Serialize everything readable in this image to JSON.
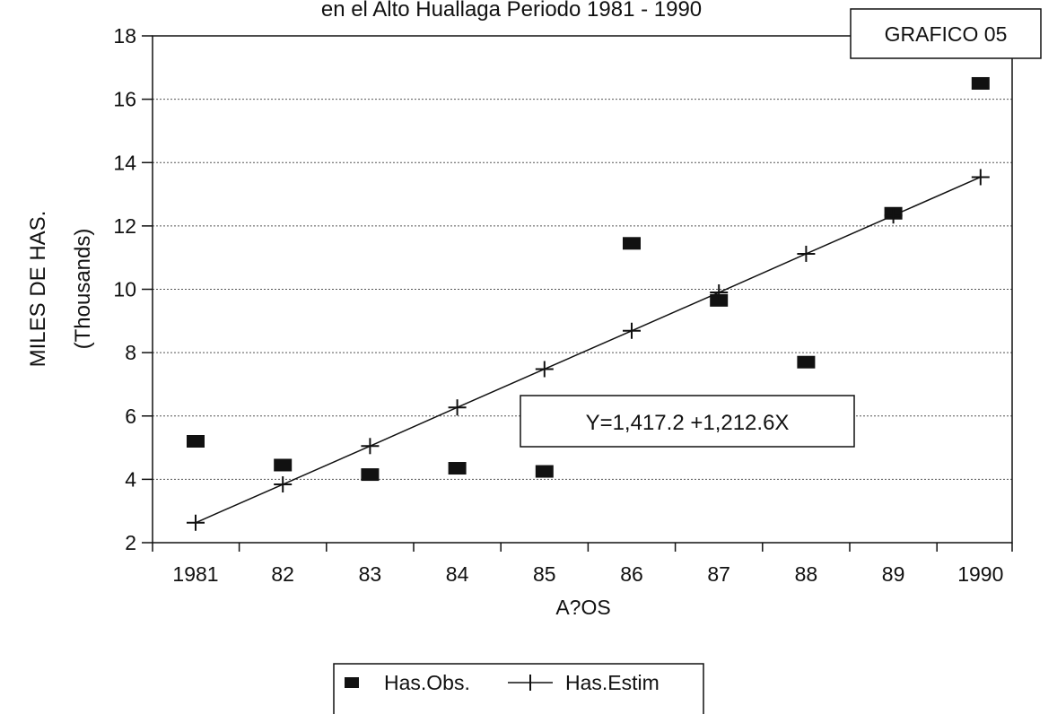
{
  "chart_data": {
    "type": "scatter",
    "title": "en el Alto Huallaga Periodo 1981 - 1990",
    "badge": "GRAFICO 05",
    "xlabel": "A?OS",
    "ylabel": "MILES DE HAS.",
    "ylabel_sub": "(Thousands)",
    "categories": [
      "1981",
      "82",
      "83",
      "84",
      "85",
      "86",
      "87",
      "88",
      "89",
      "1990"
    ],
    "ylim": [
      2,
      18
    ],
    "yticks": [
      2,
      4,
      6,
      8,
      10,
      12,
      14,
      16,
      18
    ],
    "grid": true,
    "legend_position": "bottom",
    "equation": "Y=1,417.2 +1,212.6X",
    "series": [
      {
        "name": "Has.Obs.",
        "marker": "square",
        "color": "#111111",
        "values": [
          5.2,
          4.45,
          4.15,
          4.35,
          4.25,
          11.45,
          9.65,
          7.7,
          12.4,
          16.5
        ]
      },
      {
        "name": "Has.Estim",
        "marker": "plus",
        "line": true,
        "color": "#111111",
        "values": [
          2.63,
          3.84,
          5.05,
          6.27,
          7.48,
          8.69,
          9.9,
          11.12,
          12.33,
          13.54
        ]
      }
    ]
  }
}
